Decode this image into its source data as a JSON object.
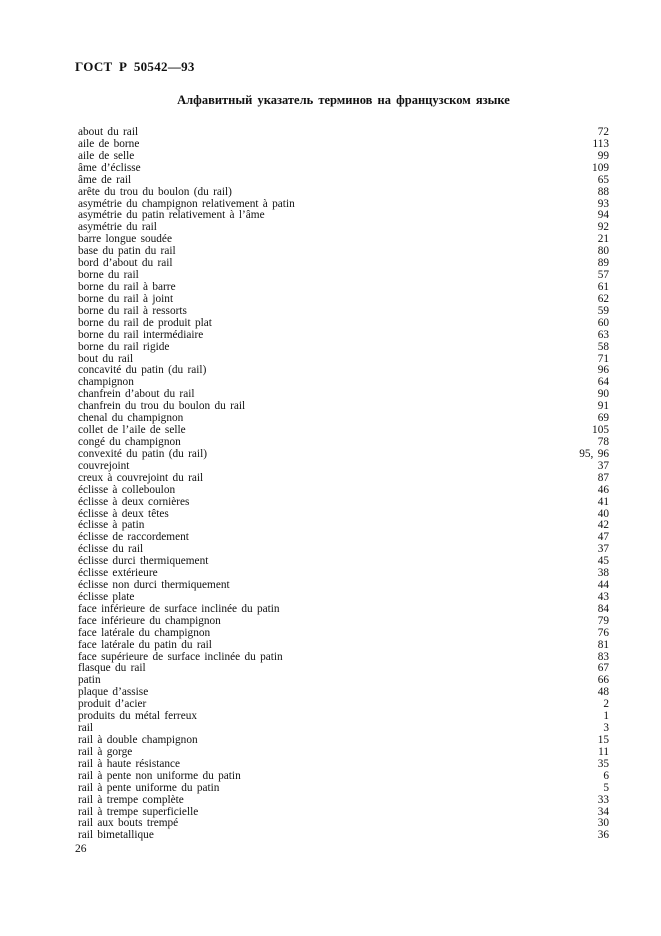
{
  "header": {
    "doc_number": "ГОСТ Р 50542—93",
    "title": "Алфавитный указатель терминов на французском языке"
  },
  "footer": {
    "page_number": "26"
  },
  "index": {
    "entries": [
      {
        "term": "about du rail",
        "page": "72"
      },
      {
        "term": "aile de borne",
        "page": "113"
      },
      {
        "term": "aile de selle",
        "page": "99"
      },
      {
        "term": "âme d’éclisse",
        "page": "109"
      },
      {
        "term": "âme de rail",
        "page": "65"
      },
      {
        "term": "arête du trou du boulon (du rail)",
        "page": "88"
      },
      {
        "term": "asymétrie du champignon relativement à patin",
        "page": "93"
      },
      {
        "term": "asymétrie du patin relativement à l’âme",
        "page": "94"
      },
      {
        "term": "asymétrie du rail",
        "page": "92"
      },
      {
        "term": "barre longue soudée",
        "page": "21"
      },
      {
        "term": "base du patin du rail",
        "page": "80"
      },
      {
        "term": "bord d’about du rail",
        "page": "89"
      },
      {
        "term": "borne du rail",
        "page": "57"
      },
      {
        "term": "borne du rail à barre",
        "page": "61"
      },
      {
        "term": "borne du rail à joint",
        "page": "62"
      },
      {
        "term": "borne du rail à ressorts",
        "page": "59"
      },
      {
        "term": "borne du rail de produit plat",
        "page": "60"
      },
      {
        "term": "borne du rail intermédiaire",
        "page": "63"
      },
      {
        "term": "borne du rail rigide",
        "page": "58"
      },
      {
        "term": "bout du rail",
        "page": "71"
      },
      {
        "term": "concavité du patin (du rail)",
        "page": "96"
      },
      {
        "term": "champignon",
        "page": "64"
      },
      {
        "term": "chanfrein d’about du rail",
        "page": "90"
      },
      {
        "term": "chanfrein du trou du boulon du rail",
        "page": "91"
      },
      {
        "term": "chenal du champignon",
        "page": "69"
      },
      {
        "term": "collet de l’aile de selle",
        "page": "105"
      },
      {
        "term": "congé du champignon",
        "page": "78"
      },
      {
        "term": "convexité du patin (du rail)",
        "page": "95, 96"
      },
      {
        "term": "couvrejoint",
        "page": "37"
      },
      {
        "term": "creux à couvrejoint du rail",
        "page": "87"
      },
      {
        "term": "éclisse à colleboulon",
        "page": "46"
      },
      {
        "term": "éclisse à deux cornières",
        "page": "41"
      },
      {
        "term": "éclisse à deux têtes",
        "page": "40"
      },
      {
        "term": "éclisse à patin",
        "page": "42"
      },
      {
        "term": "éclisse de raccordement",
        "page": "47"
      },
      {
        "term": "éclisse du rail",
        "page": "37"
      },
      {
        "term": "éclisse durci thermiquement",
        "page": "45"
      },
      {
        "term": "éclisse extérieure",
        "page": "38"
      },
      {
        "term": "éclisse non durci thermiquement",
        "page": "44"
      },
      {
        "term": "éclisse plate",
        "page": "43"
      },
      {
        "term": "face inférieure de surface inclinée du patin",
        "page": "84"
      },
      {
        "term": "face inférieure du champignon",
        "page": "79"
      },
      {
        "term": "face latérale du champignon",
        "page": "76"
      },
      {
        "term": "face latérale du patin du rail",
        "page": "81"
      },
      {
        "term": "face supérieure de surface inclinée du patin",
        "page": "83"
      },
      {
        "term": "flasque du rail",
        "page": "67"
      },
      {
        "term": "patin",
        "page": "66"
      },
      {
        "term": "plaque d’assise",
        "page": "48"
      },
      {
        "term": "produit d’acier",
        "page": "2"
      },
      {
        "term": "produits du métal ferreux",
        "page": "1"
      },
      {
        "term": "rail",
        "page": "3"
      },
      {
        "term": "rail à double champignon",
        "page": "15"
      },
      {
        "term": "rail à gorge",
        "page": "11"
      },
      {
        "term": "rail à haute résistance",
        "page": "35"
      },
      {
        "term": "rail à pente non uniforme du patin",
        "page": "6"
      },
      {
        "term": "rail à pente uniforme du patin",
        "page": "5"
      },
      {
        "term": "rail à trempe complète",
        "page": "33"
      },
      {
        "term": "rail à trempe superficielle",
        "page": "34"
      },
      {
        "term": "rail aux bouts trempé",
        "page": "30"
      },
      {
        "term": "rail bimetallique",
        "page": "36"
      }
    ]
  }
}
